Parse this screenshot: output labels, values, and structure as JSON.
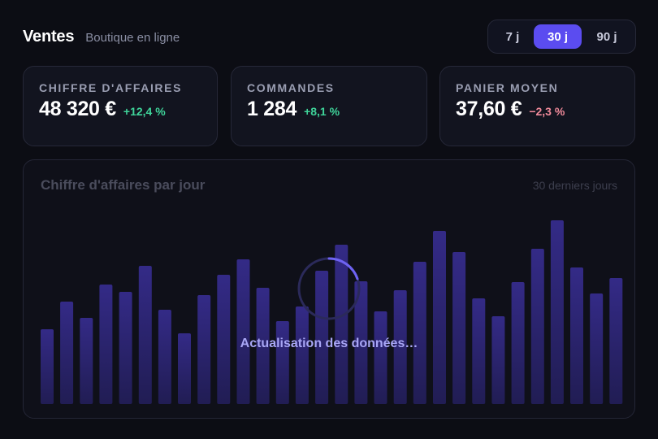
{
  "header": {
    "title": "Ventes",
    "subtitle": "Boutique en ligne"
  },
  "range": {
    "options": [
      "7 j",
      "30 j",
      "90 j"
    ],
    "selected": "30 j"
  },
  "kpis": [
    {
      "label": "CHIFFRE D'AFFAIRES",
      "value": "48 320 €",
      "delta": "+12,4 %",
      "trend": "up"
    },
    {
      "label": "COMMANDES",
      "value": "1 284",
      "delta": "+8,1 %",
      "trend": "up"
    },
    {
      "label": "PANIER MOYEN",
      "value": "37,60 €",
      "delta": "−2,3 %",
      "trend": "down"
    }
  ],
  "chart": {
    "title": "Chiffre d'affaires par jour",
    "period": "30 derniers jours",
    "loading_text": "Actualisation des données…"
  },
  "chart_data": {
    "type": "bar",
    "title": "Chiffre d'affaires par jour",
    "values": [
      92,
      126,
      106,
      147,
      138,
      170,
      116,
      87,
      134,
      159,
      178,
      143,
      102,
      120,
      164,
      196,
      151,
      114,
      140,
      175,
      213,
      187,
      130,
      108,
      150,
      191,
      226,
      168,
      136,
      155
    ],
    "ylim": [
      0,
      240
    ],
    "colors": {
      "bar_top": "#3a2f9a",
      "bar_bottom": "#241f5e"
    }
  },
  "colors": {
    "accent": "#5b4cf0",
    "positive": "#3fd49a",
    "negative": "#f08a9a"
  }
}
